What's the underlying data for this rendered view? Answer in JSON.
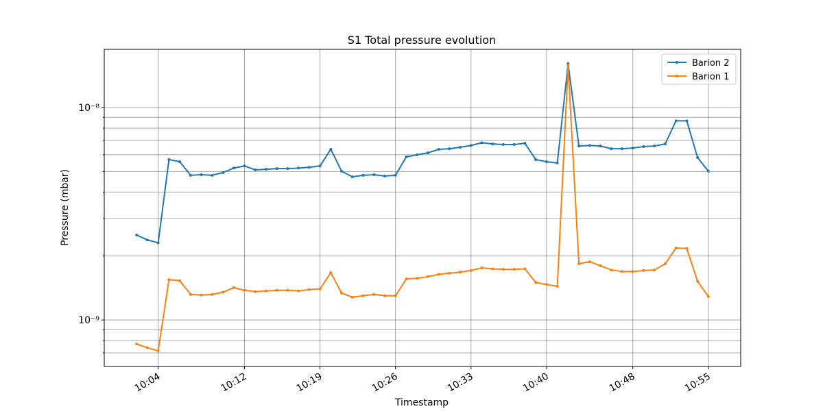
{
  "chart_data": {
    "type": "line",
    "title": "S1 Total pressure evolution",
    "xlabel": "Timestamp",
    "ylabel": "Pressure (mbar)",
    "yscale": "log",
    "grid": true,
    "legend": "upper right",
    "x": [
      "10:02",
      "10:03",
      "10:04",
      "10:05",
      "10:06",
      "10:07",
      "10:08",
      "10:09",
      "10:10",
      "10:11",
      "10:12",
      "10:13",
      "10:14",
      "10:15",
      "10:16",
      "10:17",
      "10:18",
      "10:19",
      "10:20",
      "10:21",
      "10:22",
      "10:23",
      "10:24",
      "10:25",
      "10:26",
      "10:27",
      "10:28",
      "10:29",
      "10:30",
      "10:31",
      "10:32",
      "10:33",
      "10:34",
      "10:35",
      "10:36",
      "10:37",
      "10:38",
      "10:39",
      "10:40",
      "10:41",
      "10:42",
      "10:43",
      "10:44",
      "10:45",
      "10:46",
      "10:47",
      "10:48",
      "10:49",
      "10:50",
      "10:51",
      "10:52",
      "10:53",
      "10:54",
      "10:55"
    ],
    "series": [
      {
        "name": "Barion 2",
        "color": "#1f77b4",
        "values": [
          2.51e-09,
          2.38e-09,
          2.31e-09,
          5.69e-09,
          5.56e-09,
          4.8e-09,
          4.83e-09,
          4.8e-09,
          4.94e-09,
          5.19e-09,
          5.31e-09,
          5.09e-09,
          5.12e-09,
          5.16e-09,
          5.16e-09,
          5.19e-09,
          5.23e-09,
          5.31e-09,
          6.36e-09,
          5.02e-09,
          4.72e-09,
          4.8e-09,
          4.83e-09,
          4.76e-09,
          4.8e-09,
          5.86e-09,
          5.99e-09,
          6.12e-09,
          6.36e-09,
          6.4e-09,
          6.5e-09,
          6.63e-09,
          6.83e-09,
          6.74e-09,
          6.7e-09,
          6.7e-09,
          6.79e-09,
          5.69e-09,
          5.56e-09,
          5.48e-09,
          1.61e-08,
          6.59e-09,
          6.63e-09,
          6.59e-09,
          6.4e-09,
          6.4e-09,
          6.45e-09,
          6.55e-09,
          6.59e-09,
          6.74e-09,
          8.66e-09,
          8.66e-09,
          5.82e-09,
          5.02e-09
        ]
      },
      {
        "name": "Barion 1",
        "color": "#ff7f0e",
        "values": [
          7.7e-10,
          7.4e-10,
          7.16e-10,
          1.55e-09,
          1.53e-09,
          1.32e-09,
          1.31e-09,
          1.32e-09,
          1.35e-09,
          1.42e-09,
          1.38e-09,
          1.36e-09,
          1.37e-09,
          1.38e-09,
          1.38e-09,
          1.37e-09,
          1.39e-09,
          1.4e-09,
          1.67e-09,
          1.34e-09,
          1.28e-09,
          1.3e-09,
          1.32e-09,
          1.3e-09,
          1.3e-09,
          1.56e-09,
          1.57e-09,
          1.6e-09,
          1.64e-09,
          1.66e-09,
          1.68e-09,
          1.71e-09,
          1.76e-09,
          1.74e-09,
          1.73e-09,
          1.73e-09,
          1.74e-09,
          1.5e-09,
          1.47e-09,
          1.44e-09,
          1.58e-08,
          1.84e-09,
          1.88e-09,
          1.8e-09,
          1.72e-09,
          1.69e-09,
          1.69e-09,
          1.71e-09,
          1.72e-09,
          1.84e-09,
          2.18e-09,
          2.17e-09,
          1.52e-09,
          1.29e-09
        ]
      }
    ],
    "xlim": [
      "09:59",
      "10:58"
    ],
    "xticks": [
      "10:04",
      "10:12",
      "10:19",
      "10:26",
      "10:33",
      "10:40",
      "10:48",
      "10:55"
    ],
    "ylim": [
      6.04e-10,
      1.88e-08
    ],
    "yticks": [
      {
        "value": 1e-09,
        "label": "10⁻⁹"
      },
      {
        "value": 1e-08,
        "label": "10⁻⁸"
      }
    ],
    "yticks_minor": [
      7e-10,
      8e-10,
      9e-10,
      2e-09,
      3e-09,
      4e-09,
      5e-09,
      6e-09,
      7e-09,
      8e-09,
      9e-09
    ]
  }
}
